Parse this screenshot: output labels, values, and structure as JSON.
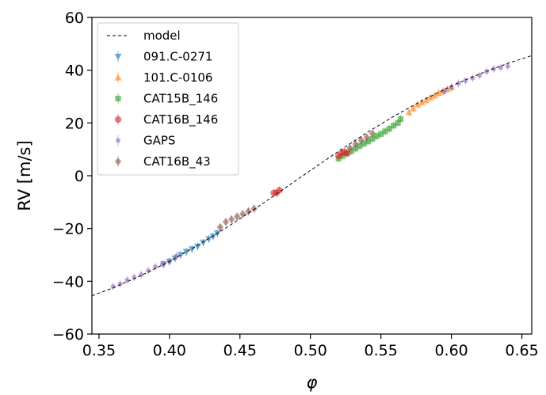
{
  "chart_data": {
    "type": "scatter",
    "title": "",
    "xlabel": "φ",
    "ylabel": "RV [m/s]",
    "xlim": [
      0.345,
      0.657
    ],
    "ylim": [
      -60,
      60
    ],
    "xticks": [
      0.35,
      0.4,
      0.45,
      0.5,
      0.55,
      0.6,
      0.65
    ],
    "xtick_labels": [
      "0.35",
      "0.40",
      "0.45",
      "0.50",
      "0.55",
      "0.60",
      "0.65"
    ],
    "yticks": [
      -60,
      -40,
      -20,
      0,
      20,
      40,
      60
    ],
    "ytick_labels": [
      "−60",
      "−40",
      "−20",
      "0",
      "20",
      "40",
      "60"
    ],
    "grid": false,
    "legend_position": "top-left",
    "model": {
      "name": "model",
      "style": "dashed",
      "color": "#000000",
      "x": [
        0.345,
        0.36,
        0.38,
        0.4,
        0.42,
        0.44,
        0.46,
        0.48,
        0.5,
        0.52,
        0.54,
        0.56,
        0.58,
        0.6,
        0.62,
        0.64,
        0.657
      ],
      "y": [
        -45.5,
        -42.5,
        -37.8,
        -32.5,
        -26.4,
        -19.8,
        -12.8,
        -5.4,
        2.0,
        9.3,
        16.3,
        22.8,
        28.7,
        34.0,
        38.6,
        42.6,
        45.5
      ]
    },
    "series": [
      {
        "name": "091.C-0271",
        "marker": "triangle-down",
        "color": "#1f77b4",
        "x": [
          0.396,
          0.4,
          0.404,
          0.408,
          0.412,
          0.416,
          0.42,
          0.424,
          0.428,
          0.431,
          0.434
        ],
        "y": [
          -33.5,
          -32.5,
          -31.3,
          -30.0,
          -28.8,
          -27.8,
          -26.8,
          -25.3,
          -24.0,
          -23.0,
          -21.8
        ]
      },
      {
        "name": "101.C-0106",
        "marker": "triangle-up",
        "color": "#ff7f0e",
        "x": [
          0.57,
          0.573,
          0.576,
          0.579,
          0.582,
          0.585,
          0.588,
          0.591,
          0.594,
          0.597,
          0.6
        ],
        "y": [
          24.0,
          25.5,
          27.0,
          27.8,
          28.6,
          29.6,
          30.4,
          31.3,
          32.0,
          32.8,
          33.5
        ]
      },
      {
        "name": "CAT15B_146",
        "marker": "square",
        "color": "#2ca02c",
        "x": [
          0.52,
          0.523,
          0.526,
          0.529,
          0.532,
          0.535,
          0.538,
          0.541,
          0.544,
          0.547,
          0.55,
          0.553,
          0.556,
          0.559,
          0.562,
          0.564
        ],
        "y": [
          6.5,
          7.5,
          8.5,
          9.3,
          10.3,
          11.3,
          12.2,
          13.0,
          14.0,
          15.0,
          15.8,
          16.8,
          17.8,
          19.0,
          20.0,
          21.5
        ]
      },
      {
        "name": "CAT16B_146",
        "marker": "circle",
        "color": "#d62728",
        "x": [
          0.474,
          0.476,
          0.478,
          0.52,
          0.522,
          0.524,
          0.526
        ],
        "y": [
          -6.5,
          -6.5,
          -5.5,
          7.5,
          8.5,
          9.0,
          8.5
        ]
      },
      {
        "name": "GAPS",
        "marker": "small-circle",
        "color": "#9467bd",
        "x": [
          0.36,
          0.365,
          0.37,
          0.375,
          0.38,
          0.385,
          0.39,
          0.395,
          0.4,
          0.405,
          0.595,
          0.6,
          0.605,
          0.61,
          0.615,
          0.62,
          0.625,
          0.63,
          0.635,
          0.64
        ],
        "y": [
          -42.0,
          -41.0,
          -39.5,
          -38.5,
          -37.5,
          -36.0,
          -34.5,
          -33.5,
          -32.5,
          -30.5,
          32.0,
          33.5,
          35.0,
          36.0,
          37.0,
          38.0,
          39.5,
          40.5,
          41.0,
          41.5
        ]
      },
      {
        "name": "CAT16B_43",
        "marker": "diamond",
        "color": "#8c564b",
        "x": [
          0.436,
          0.44,
          0.444,
          0.448,
          0.452,
          0.456,
          0.46,
          0.528,
          0.532,
          0.536,
          0.54,
          0.544
        ],
        "y": [
          -19.5,
          -17.5,
          -16.5,
          -15.5,
          -14.5,
          -13.5,
          -12.5,
          10.5,
          12.0,
          13.5,
          14.5,
          16.0
        ]
      }
    ]
  }
}
